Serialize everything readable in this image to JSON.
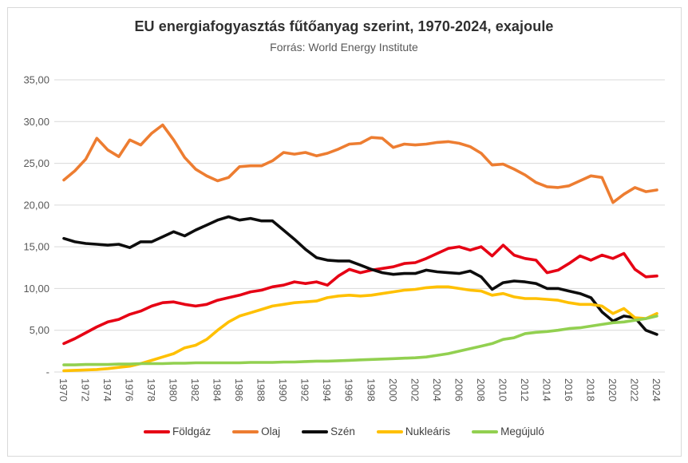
{
  "title": "EU energiafogyasztás fűtőanyag szerint, 1970-2024, exajoule",
  "subtitle": "Forrás: World Energy Institute",
  "chart_data": {
    "type": "line",
    "title": "EU energiafogyasztás fűtőanyag szerint, 1970-2024, exajoule",
    "subtitle": "Forrás: World Energy Institute",
    "unit": "exajoule",
    "xlabel": "",
    "ylabel": "",
    "ylim": [
      0,
      35
    ],
    "grid": true,
    "legend_position": "bottom",
    "grid_color": "#d9d9d9",
    "axis_text_color": "#595959",
    "y_ticks": [
      0,
      5,
      10,
      15,
      20,
      25,
      30,
      35
    ],
    "y_tick_labels": [
      "-",
      "5,00",
      "10,00",
      "15,00",
      "20,00",
      "25,00",
      "30,00",
      "35,00"
    ],
    "x": [
      1970,
      1971,
      1972,
      1973,
      1974,
      1975,
      1976,
      1977,
      1978,
      1979,
      1980,
      1981,
      1982,
      1983,
      1984,
      1985,
      1986,
      1987,
      1988,
      1989,
      1990,
      1991,
      1992,
      1993,
      1994,
      1995,
      1996,
      1997,
      1998,
      1999,
      2000,
      2001,
      2002,
      2003,
      2004,
      2005,
      2006,
      2007,
      2008,
      2009,
      2010,
      2011,
      2012,
      2013,
      2014,
      2015,
      2016,
      2017,
      2018,
      2019,
      2020,
      2021,
      2022,
      2023,
      2024
    ],
    "x_tick_labels": [
      "1970",
      "1972",
      "1974",
      "1976",
      "1978",
      "1980",
      "1982",
      "1984",
      "1986",
      "1988",
      "1990",
      "1992",
      "1994",
      "1996",
      "1998",
      "2000",
      "2002",
      "2004",
      "2006",
      "2008",
      "2010",
      "2012",
      "2014",
      "2016",
      "2018",
      "2020",
      "2022",
      "2024"
    ],
    "series": [
      {
        "name": "Földgáz",
        "color": "#e60014",
        "values": [
          3.4,
          4.0,
          4.7,
          5.4,
          6.0,
          6.3,
          6.9,
          7.3,
          7.9,
          8.3,
          8.4,
          8.1,
          7.9,
          8.1,
          8.6,
          8.9,
          9.2,
          9.6,
          9.8,
          10.2,
          10.4,
          10.8,
          10.6,
          10.8,
          10.4,
          11.5,
          12.3,
          11.9,
          12.2,
          12.4,
          12.6,
          13.0,
          13.1,
          13.6,
          14.2,
          14.8,
          15.0,
          14.6,
          15.0,
          13.9,
          15.2,
          14.0,
          13.6,
          13.4,
          11.9,
          12.2,
          13.0,
          13.9,
          13.4,
          14.0,
          13.6,
          14.2,
          12.3,
          11.4,
          11.5
        ]
      },
      {
        "name": "Olaj",
        "color": "#ed7d31",
        "values": [
          23.0,
          24.1,
          25.5,
          28.0,
          26.6,
          25.8,
          27.8,
          27.2,
          28.6,
          29.6,
          27.8,
          25.7,
          24.3,
          23.5,
          22.9,
          23.3,
          24.6,
          24.7,
          24.7,
          25.3,
          26.3,
          26.1,
          26.3,
          25.9,
          26.2,
          26.7,
          27.3,
          27.4,
          28.1,
          28.0,
          26.9,
          27.3,
          27.2,
          27.3,
          27.5,
          27.6,
          27.4,
          27.0,
          26.2,
          24.8,
          24.9,
          24.3,
          23.6,
          22.7,
          22.2,
          22.1,
          22.3,
          22.9,
          23.5,
          23.3,
          20.3,
          21.3,
          22.1,
          21.6,
          21.8
        ]
      },
      {
        "name": "Szén",
        "color": "#0d0d0d",
        "values": [
          16.0,
          15.6,
          15.4,
          15.3,
          15.2,
          15.3,
          14.9,
          15.6,
          15.6,
          16.2,
          16.8,
          16.3,
          17.0,
          17.6,
          18.2,
          18.6,
          18.2,
          18.4,
          18.1,
          18.1,
          17.0,
          15.9,
          14.7,
          13.7,
          13.4,
          13.3,
          13.3,
          12.8,
          12.3,
          11.9,
          11.7,
          11.8,
          11.8,
          12.2,
          12.0,
          11.9,
          11.8,
          12.1,
          11.4,
          9.9,
          10.7,
          10.9,
          10.8,
          10.6,
          10.0,
          10.0,
          9.7,
          9.4,
          8.9,
          7.2,
          6.1,
          6.7,
          6.5,
          5.0,
          4.5
        ]
      },
      {
        "name": "Nukleáris",
        "color": "#ffc000",
        "values": [
          0.15,
          0.2,
          0.25,
          0.3,
          0.4,
          0.55,
          0.7,
          1.0,
          1.4,
          1.8,
          2.2,
          2.9,
          3.2,
          3.9,
          5.0,
          6.0,
          6.7,
          7.1,
          7.5,
          7.9,
          8.1,
          8.3,
          8.4,
          8.5,
          8.9,
          9.1,
          9.2,
          9.1,
          9.2,
          9.4,
          9.6,
          9.8,
          9.9,
          10.1,
          10.2,
          10.2,
          10.0,
          9.8,
          9.7,
          9.2,
          9.4,
          9.0,
          8.8,
          8.8,
          8.7,
          8.6,
          8.3,
          8.1,
          8.1,
          7.9,
          7.0,
          7.6,
          6.5,
          6.4,
          7.0
        ]
      },
      {
        "name": "Megújuló",
        "color": "#92d050",
        "values": [
          0.85,
          0.85,
          0.9,
          0.9,
          0.9,
          0.95,
          0.95,
          1.0,
          1.0,
          1.0,
          1.05,
          1.05,
          1.1,
          1.1,
          1.1,
          1.1,
          1.1,
          1.15,
          1.15,
          1.15,
          1.2,
          1.2,
          1.25,
          1.3,
          1.3,
          1.35,
          1.4,
          1.45,
          1.5,
          1.55,
          1.6,
          1.65,
          1.7,
          1.8,
          2.0,
          2.2,
          2.5,
          2.8,
          3.1,
          3.4,
          3.9,
          4.1,
          4.6,
          4.75,
          4.85,
          5.0,
          5.2,
          5.3,
          5.5,
          5.7,
          5.9,
          6.0,
          6.2,
          6.4,
          6.7
        ]
      }
    ]
  }
}
